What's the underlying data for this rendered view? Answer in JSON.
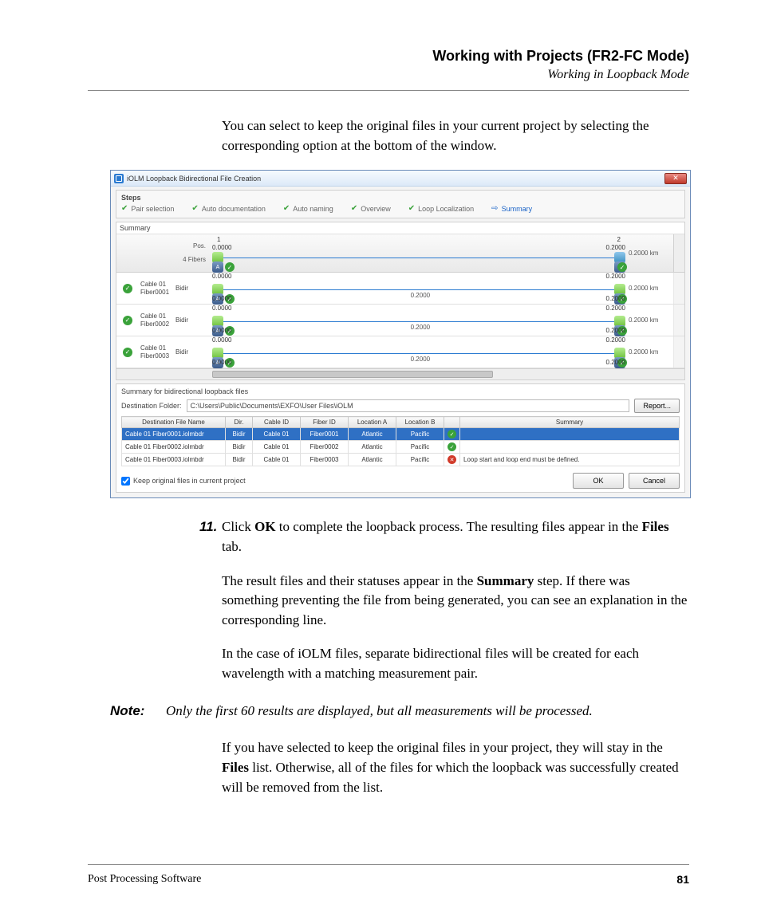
{
  "header": {
    "chapter": "Working with Projects (FR2-FC Mode)",
    "section": "Working in Loopback Mode"
  },
  "intro": "You can select to keep the original files in your current project by selecting the corresponding option at the bottom of the window.",
  "window": {
    "title": "iOLM Loopback Bidirectional File Creation",
    "steps_label": "Steps",
    "steps": [
      "Pair selection",
      "Auto documentation",
      "Auto naming",
      "Overview",
      "Loop Localization",
      "Summary"
    ],
    "summary_label": "Summary",
    "pos_label": "Pos.",
    "fibers_count": "4 Fibers",
    "axis": {
      "left_num": "1",
      "left_val": "0.0000",
      "right_num": "2",
      "right_val": "0.2000"
    },
    "distance": "0.2000 km",
    "mid_dist": "0.2000",
    "fiber_rows": [
      {
        "cable": "Cable 01",
        "fiber": "Fiber0001",
        "dir": "Bidir"
      },
      {
        "cable": "Cable 01",
        "fiber": "Fiber0002",
        "dir": "Bidir"
      },
      {
        "cable": "Cable 01",
        "fiber": "Fiber0003",
        "dir": "Bidir"
      }
    ],
    "sub_title": "Summary for bidirectional loopback files",
    "dest_label": "Destination Folder:",
    "dest_path": "C:\\Users\\Public\\Documents\\EXFO\\User Files\\iOLM",
    "report_btn": "Report...",
    "columns": [
      "Destination File Name",
      "Dir.",
      "Cable ID",
      "Fiber ID",
      "Location A",
      "Location B",
      "",
      "Summary"
    ],
    "rows": [
      {
        "file": "Cable 01 Fiber0001.iolmbdr",
        "dir": "Bidir",
        "cable": "Cable 01",
        "fiber": "Fiber0001",
        "locA": "Atlantic",
        "locB": "Pacific",
        "status": "ok",
        "msg": "",
        "selected": true
      },
      {
        "file": "Cable 01 Fiber0002.iolmbdr",
        "dir": "Bidir",
        "cable": "Cable 01",
        "fiber": "Fiber0002",
        "locA": "Atlantic",
        "locB": "Pacific",
        "status": "ok",
        "msg": "",
        "selected": false
      },
      {
        "file": "Cable 01 Fiber0003.iolmbdr",
        "dir": "Bidir",
        "cable": "Cable 01",
        "fiber": "Fiber0003",
        "locA": "Atlantic",
        "locB": "Pacific",
        "status": "err",
        "msg": "Loop start and loop end must be defined.",
        "selected": false
      }
    ],
    "keep_label": "Keep original files in current project",
    "ok": "OK",
    "cancel": "Cancel"
  },
  "step11": {
    "num": "11.",
    "p1_a": "Click ",
    "p1_b": "OK",
    "p1_c": " to complete the loopback process. The resulting files appear in the ",
    "p1_d": "Files",
    "p1_e": " tab.",
    "p2_a": "The result files and their statuses appear in the ",
    "p2_b": "Summary",
    "p2_c": " step. If there was something preventing the file from being generated, you can see an explanation in the corresponding line.",
    "p3": "In the case of iOLM files, separate bidirectional files will be created for each wavelength with a matching measurement pair."
  },
  "note": {
    "label": "Note:",
    "text": "Only the first 60 results are displayed, but all measurements will be processed."
  },
  "after_note_a": "If you have selected to keep the original files in your project, they will stay in the ",
  "after_note_b": "Files",
  "after_note_c": " list. Otherwise, all of the files for which the loopback was successfully created will be removed from the list.",
  "footer": {
    "left": "Post Processing Software",
    "page": "81"
  }
}
